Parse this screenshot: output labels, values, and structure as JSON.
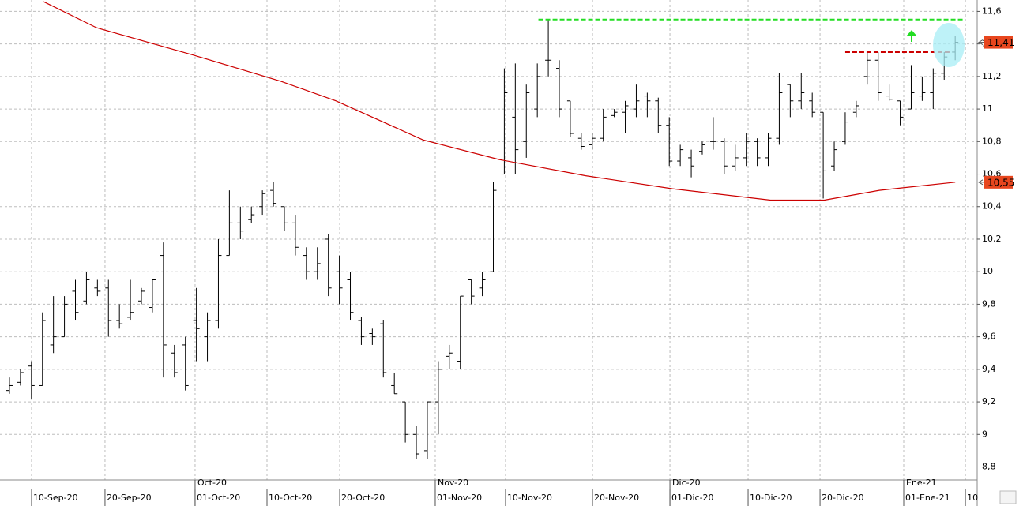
{
  "chart_data": {
    "type": "ohlc",
    "xlim": [
      -0.86,
      88.0
    ],
    "ylim": [
      8.72,
      11.67
    ],
    "grid": true,
    "bar_color": "#000000",
    "yticks": [
      {
        "value": 8.8,
        "label": "8,8"
      },
      {
        "value": 9,
        "label": "9"
      },
      {
        "value": 9.2,
        "label": "9,2"
      },
      {
        "value": 9.4,
        "label": "9,4"
      },
      {
        "value": 9.6,
        "label": "9,6"
      },
      {
        "value": 9.8,
        "label": "9,8"
      },
      {
        "value": 10,
        "label": "10"
      },
      {
        "value": 10.2,
        "label": "10,2"
      },
      {
        "value": 10.4,
        "label": "10,4"
      },
      {
        "value": 10.6,
        "label": "10,6"
      },
      {
        "value": 10.8,
        "label": "10,8"
      },
      {
        "value": 11,
        "label": "11"
      },
      {
        "value": 11.2,
        "label": "11,2"
      },
      {
        "value": 11.4,
        "label": "11,4"
      },
      {
        "value": 11.6,
        "label": "11,6"
      }
    ],
    "xticks": [
      {
        "value": 2.01,
        "label": "10-Sep-20"
      },
      {
        "value": 8.69,
        "label": "20-Sep-20"
      },
      {
        "value": 16.88,
        "label": "01-Oct-20"
      },
      {
        "value": 23.42,
        "label": "10-Oct-20"
      },
      {
        "value": 30.03,
        "label": "20-Oct-20"
      },
      {
        "value": 38.72,
        "label": "01-Nov-20"
      },
      {
        "value": 45.11,
        "label": "10-Nov-20"
      },
      {
        "value": 53.02,
        "label": "20-Nov-20"
      },
      {
        "value": 60.06,
        "label": "01-Dic-20"
      },
      {
        "value": 67.17,
        "label": "10-Dic-20"
      },
      {
        "value": 73.71,
        "label": "20-Dic-20"
      },
      {
        "value": 81.32,
        "label": "01-Ene-21"
      },
      {
        "value": 86.93,
        "label": "10"
      }
    ],
    "month_ticks": [
      {
        "value": 16.88,
        "label": "Oct-20"
      },
      {
        "value": 38.72,
        "label": "Nov-20"
      },
      {
        "value": 60.06,
        "label": "Dic-20"
      },
      {
        "value": 81.32,
        "label": "Ene-21"
      }
    ],
    "open": [
      9.27,
      9.32,
      9.42,
      9.3,
      9.55,
      9.6,
      9.88,
      9.82,
      9.9,
      9.9,
      9.7,
      9.72,
      9.82,
      9.78,
      10.1,
      9.5,
      9.55,
      9.7,
      9.6,
      9.7,
      10.1,
      10.3,
      10.32,
      10.4,
      10.5,
      10.4,
      10.3,
      10.1,
      10.0,
      10.2,
      10.0,
      9.95,
      9.7,
      9.62,
      9.68,
      9.3,
      9.2,
      9.0,
      8.9,
      9.2,
      9.48,
      9.45,
      9.95,
      9.9,
      10.0,
      10.6,
      10.95,
      10.8,
      11.0,
      11.3,
      11.25,
      11.05,
      10.82,
      10.78,
      10.82,
      10.96,
      10.98,
      11.0,
      11.08,
      11.05,
      10.9,
      10.68,
      10.7,
      10.74,
      10.8,
      10.8,
      10.65,
      10.7,
      10.8,
      10.7,
      10.82,
      11.15,
      11.05,
      11.05,
      10.98,
      10.65,
      10.8,
      10.98,
      11.2,
      11.3,
      11.08,
      11.05,
      11.0,
      11.08,
      11.1,
      11.22,
      11.35
    ],
    "high": [
      9.35,
      9.4,
      9.45,
      9.75,
      9.85,
      9.85,
      9.95,
      10.0,
      9.95,
      9.95,
      9.8,
      9.95,
      9.9,
      9.95,
      10.18,
      9.55,
      9.6,
      9.9,
      9.75,
      10.2,
      10.5,
      10.4,
      10.4,
      10.5,
      10.55,
      10.4,
      10.35,
      10.15,
      10.15,
      10.23,
      10.1,
      10.0,
      9.72,
      9.65,
      9.7,
      9.38,
      9.2,
      9.05,
      9.2,
      9.45,
      9.55,
      9.85,
      9.95,
      10.0,
      10.55,
      11.25,
      11.28,
      11.15,
      11.28,
      11.55,
      11.3,
      11.05,
      10.85,
      10.85,
      11.0,
      11.0,
      11.05,
      11.15,
      11.1,
      11.07,
      10.95,
      10.78,
      10.75,
      10.8,
      10.95,
      10.82,
      10.78,
      10.85,
      10.82,
      10.85,
      11.22,
      11.15,
      11.22,
      11.1,
      10.98,
      10.8,
      10.98,
      11.05,
      11.35,
      11.35,
      11.15,
      11.05,
      11.27,
      11.2,
      11.25,
      11.35,
      11.45
    ],
    "low": [
      9.25,
      9.3,
      9.22,
      9.3,
      9.5,
      9.6,
      9.7,
      9.8,
      9.85,
      9.6,
      9.65,
      9.7,
      9.8,
      9.75,
      9.35,
      9.35,
      9.27,
      9.45,
      9.45,
      9.65,
      10.1,
      10.2,
      10.3,
      10.35,
      10.4,
      10.25,
      10.1,
      9.95,
      9.95,
      9.85,
      9.8,
      9.7,
      9.55,
      9.55,
      9.35,
      9.25,
      8.95,
      8.85,
      8.85,
      9.0,
      9.4,
      9.4,
      9.8,
      9.85,
      10.0,
      10.6,
      10.6,
      10.7,
      10.95,
      11.2,
      10.95,
      10.83,
      10.75,
      10.75,
      10.8,
      10.95,
      10.85,
      10.95,
      10.95,
      10.85,
      10.65,
      10.65,
      10.58,
      10.72,
      10.75,
      10.6,
      10.62,
      10.65,
      10.65,
      10.65,
      10.78,
      10.95,
      11.0,
      10.95,
      10.45,
      10.62,
      10.78,
      10.95,
      11.15,
      11.05,
      11.05,
      10.9,
      11.0,
      11.05,
      11.0,
      11.18,
      11.3
    ],
    "close": [
      9.3,
      9.38,
      9.3,
      9.7,
      9.6,
      9.8,
      9.75,
      9.95,
      9.88,
      9.7,
      9.68,
      9.75,
      9.88,
      9.95,
      9.55,
      9.38,
      9.3,
      9.65,
      9.7,
      10.1,
      10.3,
      10.25,
      10.35,
      10.48,
      10.42,
      10.3,
      10.15,
      10.0,
      10.05,
      9.9,
      9.9,
      9.75,
      9.6,
      9.6,
      9.38,
      9.25,
      9.0,
      8.88,
      9.2,
      9.4,
      9.5,
      9.85,
      9.85,
      9.95,
      10.5,
      11.1,
      10.75,
      11.1,
      11.2,
      11.3,
      11.0,
      10.85,
      10.77,
      10.82,
      10.95,
      10.98,
      11.02,
      11.05,
      11.05,
      10.9,
      10.68,
      10.75,
      10.65,
      10.78,
      10.8,
      10.65,
      10.7,
      10.8,
      10.7,
      10.82,
      11.1,
      11.05,
      11.1,
      10.98,
      10.62,
      10.75,
      10.92,
      11.02,
      11.3,
      11.1,
      11.06,
      10.95,
      11.1,
      11.1,
      11.22,
      11.32,
      11.41
    ],
    "moving_average": {
      "color": "#cc0000",
      "x": [
        3.1,
        7.9,
        16.8,
        24.7,
        29.7,
        37.6,
        44.5,
        52.4,
        60.3,
        69.2,
        74.1,
        79.1,
        86.0
      ],
      "values": [
        11.66,
        11.5,
        11.33,
        11.17,
        11.05,
        10.81,
        10.69,
        10.59,
        10.51,
        10.44,
        10.44,
        10.5,
        10.55
      ]
    },
    "hlines": [
      {
        "value": 11.55,
        "from": 48.1,
        "to": 86.8,
        "color": "#22dd22"
      },
      {
        "value": 11.35,
        "from": 76.0,
        "to": 85.7,
        "color": "#cc0000"
      }
    ],
    "price_labels": [
      {
        "value": 11.41,
        "label": "11,41",
        "color": "#e8461e"
      },
      {
        "value": 10.55,
        "label": "10,55",
        "color": "#e8461e"
      }
    ]
  }
}
